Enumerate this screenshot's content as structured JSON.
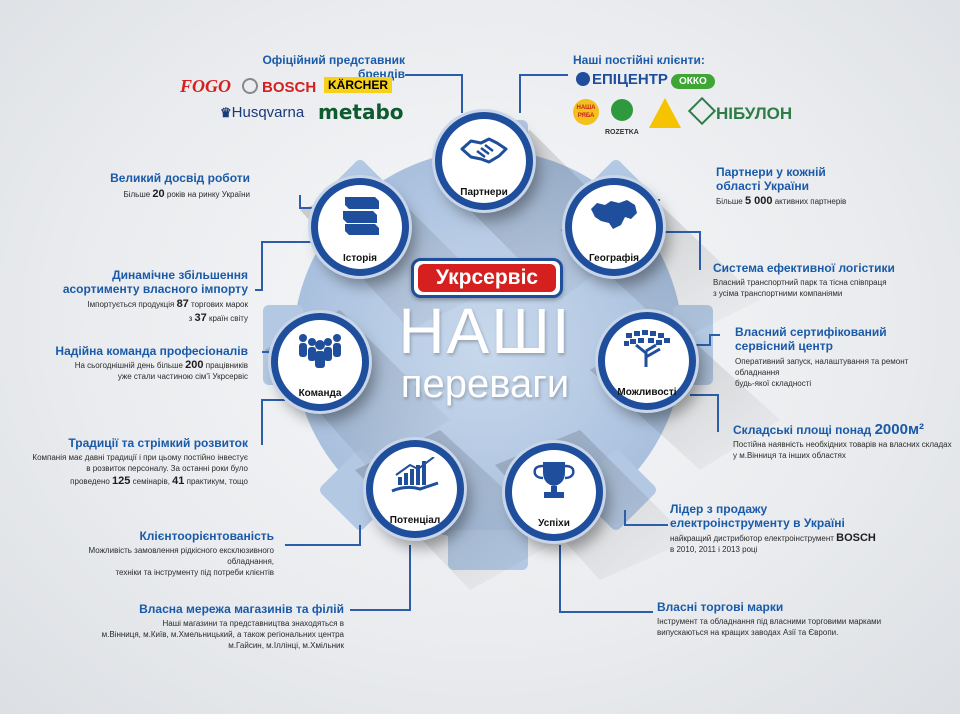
{
  "title": {
    "line1": "НАШІ",
    "line2": "переваги"
  },
  "brand": "Укрсервіс",
  "nodes": {
    "partners": "Партнери",
    "geography": "Географія",
    "possibilities": "Можливості",
    "successes": "Успіхи",
    "potential": "Потенціал",
    "team": "Команда",
    "history": "Історія"
  },
  "brands_block": {
    "heading": "Офіційний представник брендів",
    "logos": [
      "FOGO",
      "BOSCH",
      "KÄRCHER",
      "Husqvarna",
      "metabo"
    ]
  },
  "clients_block": {
    "heading": "Наші постійні клієнти:",
    "logos": [
      "ЕПІЦЕНТР",
      "ОККО",
      "НАША РЯБА",
      "ROZETKA",
      "НІБУЛОН"
    ]
  },
  "history_block": {
    "heading": "Великий досвід роботи",
    "text_pre": "Більше ",
    "number": "20",
    "text_post": " років на ринку України"
  },
  "assortment_block": {
    "heading1": "Динамічне збільшення",
    "heading2": "асортименту власного імпорту",
    "line1_pre": "Імпортується продукція ",
    "line1_num": "87",
    "line1_post": " торгових марок",
    "line2_pre": "з ",
    "line2_num": "37",
    "line2_post": " країн світу"
  },
  "team_block": {
    "heading": "Надійна команда професіоналів",
    "line1_pre": "На сьогоднішній день більше ",
    "line1_num": "200",
    "line1_post": " працівників",
    "line2": "уже стали частиною сім'ї Укрсервіс"
  },
  "traditions_block": {
    "heading": "Традиції та стрімкий розвиток",
    "line1": "Компанія має давні традиції і при цьому постійно інвестує",
    "line2": "в розвиток  персоналу. За останні роки було",
    "line3_pre": "проведено ",
    "num1": "125",
    "line3_mid": " семінарів, ",
    "num2": "41",
    "line3_post": " практикум, тощо"
  },
  "client_block": {
    "heading": "Клієнтоорієнтованість",
    "line1": "Можливість замовлення рідкісного ексклюзивного обладнання,",
    "line2": "техніки та інструменту під потреби клієнтів"
  },
  "stores_block": {
    "heading": "Власна мережа магазинів та філій",
    "line1": "Наші магазини та представництва знаходяться в",
    "line2": "м.Вінниця, м.Київ, м.Хмельницький, а також регіональних центра",
    "line3": "м.Гайсин, м.Іллінці, м.Хмільник"
  },
  "partners_block": {
    "heading1": "Партнери у кожній",
    "heading2": "області України",
    "text_pre": "Більше ",
    "number": "5 000",
    "text_post": " активних партнерів"
  },
  "logistics_block": {
    "heading": "Система ефективної логістики",
    "line1": "Власний транспортний парк та тісна співпраця",
    "line2": "з усіма транспортними компаніями"
  },
  "service_block": {
    "heading1": "Власний сертифікований",
    "heading2": "сервісний центр",
    "line1": "Оперативний запуск, налаштування та ремонт обладнання",
    "line2": "будь-якої складності"
  },
  "warehouse_block": {
    "heading": "Складські площі понад ",
    "heading_num": "2000м²",
    "line1": "Постійна наявність необхідних товарів на власних складах",
    "line2": "у м.Вінниця та інших областях"
  },
  "leader_block": {
    "heading1": "Лідер з продажу",
    "heading2": "електроінструменту в Україні",
    "line1_pre": "найкращий дистрибютор електроінструмент ",
    "line1_brand": "BOSCH",
    "line2": "в 2010, 2011 і 2013 році"
  },
  "trademarks_block": {
    "heading": "Власні торгові марки",
    "line1": "Інструмент та обладнання під власними торговими марками",
    "line2": "випускаються на кращих заводах Азії та Європи."
  },
  "colors": {
    "accent_blue": "#1f4e9c",
    "heading_blue": "#1a5aa8",
    "brand_red": "#d6201f",
    "gear": "#b9cde6"
  }
}
